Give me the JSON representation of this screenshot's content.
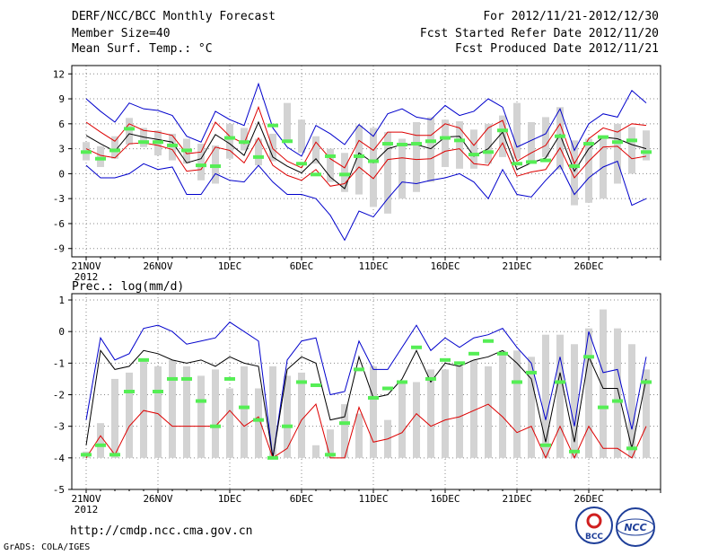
{
  "header": {
    "title": "DERF/NCC/BCC Monthly Forecast",
    "member": "Member Size=40",
    "variable": "Mean Surf. Temp.: °C",
    "period": "For 2012/11/21-2012/12/30",
    "start": "Fcst Started Refer Date 2012/11/20",
    "produced": "Fcst Produced Date 2012/11/21"
  },
  "footer": {
    "url": "http://cmdp.ncc.cma.gov.cn",
    "credit": "GrADS: COLA/IGES",
    "logo1": "BCC",
    "logo2": "NCC"
  },
  "colors": {
    "max": "#0000cc",
    "spread": "#dd0000",
    "mean": "#000000",
    "observed": "#55ee55",
    "box": "#d3d3d3",
    "grid": "#888888"
  },
  "chart_data": [
    {
      "type": "box+line",
      "title": "Mean Surf. Temp.: °C",
      "x_ticks": [
        "21NOV",
        "26NOV",
        "1DEC",
        "6DEC",
        "11DEC",
        "16DEC",
        "21DEC",
        "26DEC"
      ],
      "x_tick_sub": "2012",
      "ylim": [
        -10,
        13
      ],
      "y_ticks": [
        12,
        9,
        6,
        3,
        0,
        -3,
        -6,
        -9
      ],
      "grid": true,
      "days": 40,
      "box_low": [
        1.6,
        0.8,
        1.8,
        3.5,
        3.2,
        2.2,
        1.6,
        1.2,
        -0.8,
        -1.2,
        1.8,
        2.8,
        1.0,
        1.5,
        4.0,
        2.5,
        1.2,
        -1.0,
        -2.2,
        -2.5,
        -4.0,
        -4.8,
        -3.0,
        -2.2,
        -1.0,
        0.8,
        0.6,
        0.6,
        1.2,
        2.0,
        1.8,
        1.5,
        2.0,
        0.5,
        -3.8,
        -3.5,
        -3.0,
        -1.2,
        0.0,
        1.6
      ],
      "box_high": [
        3.8,
        3.3,
        4.5,
        6.7,
        5.5,
        5.2,
        4.8,
        4.2,
        3.6,
        3.4,
        6.0,
        5.5,
        4.2,
        4.8,
        8.5,
        6.5,
        4.5,
        3.0,
        2.5,
        5.8,
        5.5,
        5.0,
        4.2,
        6.2,
        6.8,
        6.5,
        6.3,
        5.3,
        6.0,
        7.0,
        8.5,
        6.2,
        6.8,
        8.0,
        4.0,
        4.2,
        4.6,
        6.0,
        5.6,
        5.2
      ],
      "observed": [
        2.6,
        1.8,
        2.8,
        5.4,
        3.8,
        3.8,
        3.4,
        2.8,
        1.0,
        0.9,
        4.3,
        3.8,
        2.0,
        5.8,
        3.9,
        1.2,
        -0.1,
        2.1,
        -0.1,
        2.1,
        1.5,
        3.6,
        3.5,
        3.6,
        3.9,
        4.3,
        4.0,
        2.3,
        2.6,
        5.2,
        1.2,
        1.4,
        1.6,
        4.5,
        0.9,
        3.6,
        4.4,
        3.8,
        4.0,
        2.6
      ],
      "series": [
        {
          "name": "max",
          "values": [
            9.0,
            7.5,
            6.2,
            8.5,
            7.8,
            7.6,
            7.0,
            4.5,
            3.8,
            7.5,
            6.5,
            5.8,
            10.8,
            5.5,
            3.2,
            2.1,
            5.8,
            4.8,
            3.5,
            5.9,
            4.5,
            7.2,
            7.8,
            6.8,
            6.5,
            8.2,
            7.0,
            7.5,
            9.0,
            8.0,
            3.2,
            4.0,
            4.8,
            7.8,
            2.8,
            6.0,
            7.2,
            6.8,
            10.0,
            8.5
          ]
        },
        {
          "name": "upper",
          "values": [
            6.2,
            5.0,
            3.9,
            6.0,
            5.2,
            5.0,
            4.6,
            2.4,
            2.6,
            6.2,
            4.5,
            3.6,
            8.0,
            3.0,
            1.5,
            0.7,
            3.8,
            1.8,
            0.7,
            4.0,
            2.8,
            5.0,
            5.0,
            4.6,
            4.6,
            6.0,
            5.5,
            3.4,
            5.5,
            6.4,
            1.5,
            2.5,
            3.4,
            6.0,
            1.2,
            4.2,
            5.5,
            5.0,
            6.0,
            5.8
          ]
        },
        {
          "name": "mean",
          "values": [
            4.6,
            3.6,
            2.7,
            4.8,
            4.4,
            4.1,
            3.8,
            1.3,
            1.8,
            4.7,
            3.6,
            2.2,
            6.2,
            2.0,
            0.9,
            0.1,
            1.8,
            -0.4,
            -1.8,
            2.5,
            1.3,
            3.0,
            3.5,
            3.5,
            3.0,
            4.4,
            4.5,
            2.1,
            3.0,
            5.0,
            0.5,
            1.3,
            1.9,
            4.7,
            0.3,
            3.0,
            4.4,
            4.2,
            3.5,
            3.0
          ]
        },
        {
          "name": "lower",
          "values": [
            3.0,
            2.2,
            1.9,
            3.6,
            3.7,
            3.4,
            2.9,
            0.3,
            0.5,
            3.2,
            2.8,
            1.3,
            4.3,
            1.0,
            -0.2,
            -0.8,
            0.5,
            -1.5,
            -1.2,
            0.8,
            -0.6,
            1.7,
            1.9,
            1.7,
            1.8,
            2.7,
            3.0,
            1.2,
            1.0,
            3.7,
            -0.3,
            0.2,
            0.5,
            3.1,
            -0.5,
            1.5,
            3.2,
            3.3,
            1.8,
            2.1
          ]
        },
        {
          "name": "min",
          "values": [
            1.0,
            -0.5,
            -0.5,
            0.0,
            1.2,
            0.5,
            0.8,
            -2.5,
            -2.5,
            0.0,
            -0.8,
            -1.0,
            1.0,
            -1.0,
            -2.5,
            -2.5,
            -3.0,
            -5.0,
            -8.0,
            -4.5,
            -5.2,
            -3.0,
            -1.0,
            -1.2,
            -0.8,
            -0.5,
            0.0,
            -1.0,
            -3.0,
            0.5,
            -2.5,
            -2.8,
            -0.8,
            1.0,
            -2.5,
            -0.5,
            0.8,
            1.5,
            -3.8,
            -3.0
          ]
        }
      ]
    },
    {
      "type": "box+line",
      "title": "Prec.: log(mm/d)",
      "x_ticks": [
        "21NOV",
        "26NOV",
        "1DEC",
        "6DEC",
        "11DEC",
        "16DEC",
        "21DEC",
        "26DEC"
      ],
      "x_tick_sub": "2012",
      "ylim": [
        -5,
        1.2
      ],
      "y_ticks": [
        1,
        0,
        -1,
        -2,
        -3,
        -4,
        -5
      ],
      "grid": true,
      "days": 40,
      "box_top": [
        -3.8,
        -2.9,
        -1.5,
        -1.3,
        -0.9,
        -1.1,
        -0.9,
        -1.1,
        -1.4,
        -1.2,
        -1.8,
        -1.1,
        -1.8,
        -1.1,
        -1.4,
        -1.3,
        -3.6,
        -3.1,
        -2.3,
        -2.6,
        -1.1,
        -2.8,
        -1.6,
        -1.6,
        -1.2,
        -1.2,
        -1.1,
        -0.9,
        -1.1,
        -0.6,
        -0.6,
        -0.8,
        -0.1,
        -0.1,
        -0.4,
        0.1,
        0.7,
        0.1,
        -0.4,
        -1.2
      ],
      "observed": [
        -3.9,
        -3.6,
        -3.9,
        -1.9,
        -0.9,
        -1.9,
        -1.5,
        -1.5,
        -2.2,
        -3.0,
        -1.5,
        -2.4,
        -2.8,
        -4.0,
        -3.0,
        -1.6,
        -1.7,
        -3.9,
        -2.9,
        -1.2,
        -2.1,
        -1.8,
        -1.6,
        -0.5,
        -1.5,
        -0.9,
        -1.0,
        -0.7,
        -0.3,
        -0.7,
        -1.6,
        -1.3,
        -3.6,
        -1.6,
        -3.8,
        -0.8,
        -2.4,
        -2.2,
        -3.7,
        -1.6
      ],
      "series": [
        {
          "name": "max",
          "values": [
            -2.8,
            -0.2,
            -0.9,
            -0.7,
            0.1,
            0.2,
            0.0,
            -0.4,
            -0.3,
            -0.2,
            0.3,
            0.0,
            -0.3,
            -4.0,
            -0.9,
            -0.3,
            -0.2,
            -2.0,
            -1.9,
            -0.3,
            -1.2,
            -1.2,
            -0.5,
            0.2,
            -0.6,
            -0.2,
            -0.5,
            -0.2,
            -0.1,
            0.1,
            -0.5,
            -1.0,
            -2.8,
            -0.8,
            -3.0,
            0.0,
            -1.3,
            -1.2,
            -3.1,
            -0.8
          ]
        },
        {
          "name": "mean",
          "values": [
            -3.6,
            -0.6,
            -1.2,
            -1.1,
            -0.6,
            -0.7,
            -0.9,
            -1.0,
            -0.9,
            -1.1,
            -0.8,
            -1.0,
            -1.1,
            -4.0,
            -1.2,
            -0.8,
            -1.0,
            -2.8,
            -2.7,
            -0.8,
            -2.1,
            -2.0,
            -1.5,
            -0.6,
            -1.6,
            -1.0,
            -1.1,
            -0.9,
            -0.8,
            -0.6,
            -1.0,
            -1.5,
            -3.5,
            -1.3,
            -3.5,
            -0.8,
            -1.8,
            -1.8,
            -3.7,
            -1.5
          ]
        },
        {
          "name": "spread",
          "values": [
            -4.0,
            -3.3,
            -3.9,
            -3.0,
            -2.5,
            -2.6,
            -3.0,
            -3.0,
            -3.0,
            -3.0,
            -2.5,
            -3.0,
            -2.7,
            -4.0,
            -3.7,
            -2.8,
            -2.3,
            -4.0,
            -4.0,
            -2.4,
            -3.5,
            -3.4,
            -3.2,
            -2.6,
            -3.0,
            -2.8,
            -2.7,
            -2.5,
            -2.3,
            -2.7,
            -3.2,
            -3.0,
            -4.0,
            -3.0,
            -4.0,
            -3.0,
            -3.7,
            -3.7,
            -4.0,
            -3.0
          ]
        }
      ]
    }
  ]
}
